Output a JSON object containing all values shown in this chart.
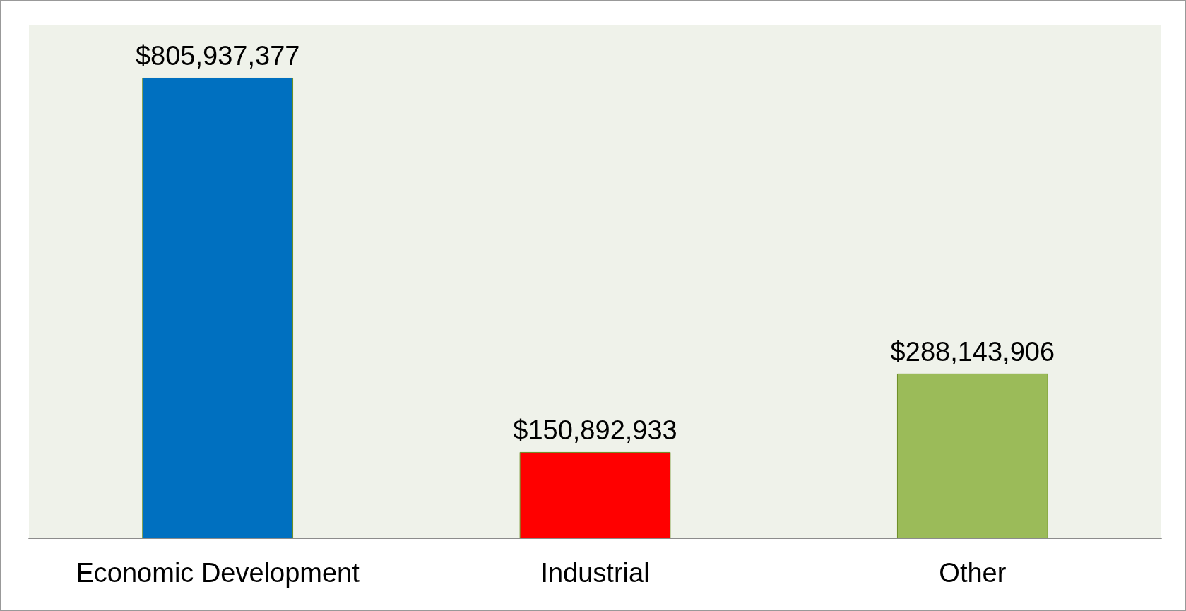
{
  "chart_data": {
    "type": "bar",
    "categories": [
      "Economic Development",
      "Industrial",
      "Other"
    ],
    "values": [
      805937377,
      150892933,
      288143906
    ],
    "colors": [
      "#0070c0",
      "#ff0000",
      "#9bbb59"
    ],
    "value_labels": [
      "$805,937,377",
      "$150,892,933",
      "$288,143,906"
    ]
  }
}
